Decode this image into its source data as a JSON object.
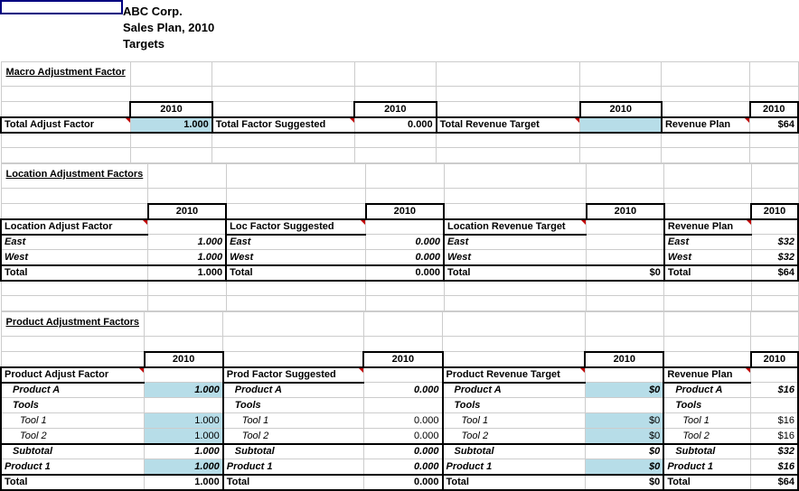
{
  "colors": {
    "highlight": "#b7dde8",
    "marker": "#c00000",
    "selected": "#000080",
    "grid": "#cccccc"
  },
  "title": {
    "company": "ABC Corp.",
    "plan": "Sales Plan, 2010",
    "sub": "Targets"
  },
  "year": "2010",
  "macro": {
    "section": "Macro Adjustment Factor",
    "labels": {
      "adj": "Total Adjust Factor",
      "sugg": "Total Factor Suggested",
      "target": "Total Revenue Target",
      "plan": "Revenue Plan"
    },
    "values": {
      "adj": "1.000",
      "sugg": "0.000",
      "target": "",
      "plan": "$64"
    }
  },
  "location": {
    "section": "Location Adjustment Factors",
    "labels": {
      "adj": "Location Adjust Factor",
      "sugg": "Loc Factor Suggested",
      "target": "Location Revenue Target",
      "plan": "Revenue Plan"
    },
    "rows": [
      {
        "name": "East",
        "adj": "1.000",
        "sugg": "0.000",
        "target": "",
        "plan": "$32",
        "ital": true
      },
      {
        "name": "West",
        "adj": "1.000",
        "sugg": "0.000",
        "target": "",
        "plan": "$32",
        "ital": true
      }
    ],
    "total": {
      "name": "Total",
      "adj": "1.000",
      "sugg": "0.000",
      "target": "$0",
      "plan": "$64"
    }
  },
  "product": {
    "section": "Product Adjustment Factors",
    "labels": {
      "adj": "Product Adjust Factor",
      "sugg": "Prod Factor Suggested",
      "target": "Product Revenue Target",
      "plan": "Revenue Plan"
    },
    "rows": [
      {
        "name": "Product A",
        "adj": "1.000",
        "sugg": "0.000",
        "target": "$0",
        "plan": "$16",
        "ital": true,
        "ind": 1,
        "hl": true
      },
      {
        "name": "Tools",
        "adj": "",
        "sugg": "",
        "target": "",
        "plan": "",
        "ital": true,
        "ind": 1,
        "hl": false
      },
      {
        "name": "Tool 1",
        "adj": "1.000",
        "sugg": "0.000",
        "target": "$0",
        "plan": "$16",
        "ital": false,
        "ind": 2,
        "hl": true
      },
      {
        "name": "Tool 2",
        "adj": "1.000",
        "sugg": "0.000",
        "target": "$0",
        "plan": "$16",
        "ital": false,
        "ind": 2,
        "hl": true
      },
      {
        "name": "Subtotal",
        "adj": "1.000",
        "sugg": "0.000",
        "target": "$0",
        "plan": "$32",
        "ital": true,
        "ind": 1,
        "sub": true
      },
      {
        "name": "Product 1",
        "adj": "1.000",
        "sugg": "0.000",
        "target": "$0",
        "plan": "$16",
        "ital": true,
        "ind": 0,
        "hl": true
      }
    ],
    "total": {
      "name": "Total",
      "adj": "1.000",
      "sugg": "0.000",
      "target": "$0",
      "plan": "$64"
    }
  }
}
